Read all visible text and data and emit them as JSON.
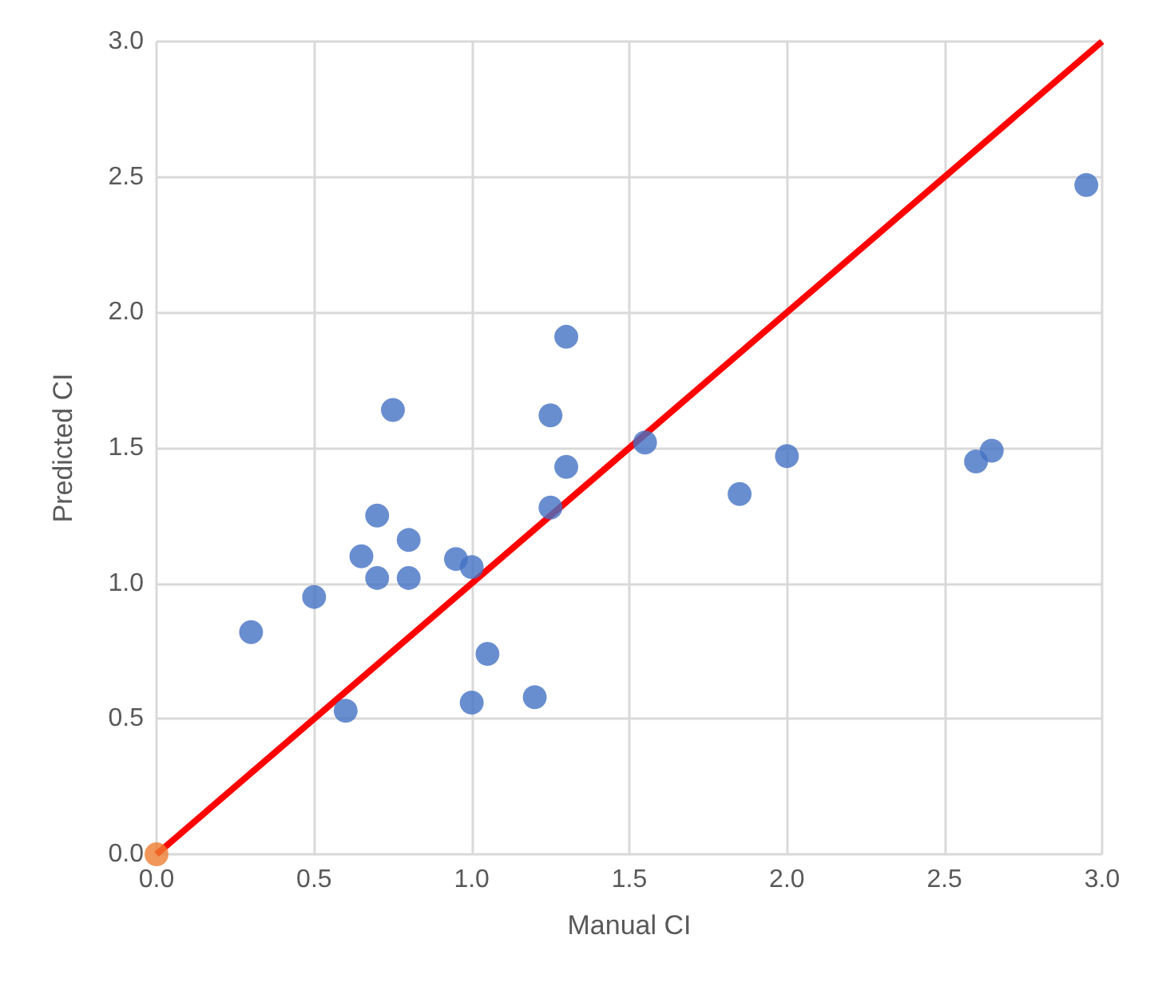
{
  "chart_data": {
    "type": "scatter",
    "xlabel": "Manual CI",
    "ylabel": "Predicted CI",
    "xlim": [
      0,
      3
    ],
    "ylim": [
      0,
      3
    ],
    "xticks": [
      {
        "value": 0,
        "label": "0.0"
      },
      {
        "value": 0.5,
        "label": "0.5"
      },
      {
        "value": 1,
        "label": "1.0"
      },
      {
        "value": 1.5,
        "label": "1.5"
      },
      {
        "value": 2,
        "label": "2.0"
      },
      {
        "value": 2.5,
        "label": "2.5"
      },
      {
        "value": 3,
        "label": "3.0"
      }
    ],
    "yticks": [
      {
        "value": 0,
        "label": "0.0"
      },
      {
        "value": 0.5,
        "label": "0.5"
      },
      {
        "value": 1,
        "label": "1.0"
      },
      {
        "value": 1.5,
        "label": "1.5"
      },
      {
        "value": 2,
        "label": "2.0"
      },
      {
        "value": 2.5,
        "label": "2.5"
      },
      {
        "value": 3,
        "label": "3.0"
      }
    ],
    "grid": true,
    "marker": "circle",
    "series": [
      {
        "type": "line",
        "marker": "none",
        "color": "#ff0000",
        "x": [
          0,
          3
        ],
        "values": [
          0,
          3
        ]
      },
      {
        "color": "#4472c4",
        "x": [
          1.3,
          0.75,
          1.25,
          1.55,
          1.3,
          0.7,
          1.25,
          0.8,
          0.65,
          0.95,
          1.0,
          0.7,
          0.8,
          0.5,
          0.3,
          1.05,
          1.2,
          1.0,
          0.6,
          2.95,
          1.85,
          2.0,
          2.6,
          2.65
        ],
        "values": [
          1.91,
          1.64,
          1.62,
          1.52,
          1.43,
          1.25,
          1.28,
          1.16,
          1.1,
          1.09,
          1.06,
          1.02,
          1.02,
          0.95,
          0.82,
          0.74,
          0.58,
          0.56,
          0.53,
          2.47,
          1.33,
          1.47,
          1.45,
          1.49
        ]
      },
      {
        "color": "#ed7d31",
        "x": [
          0
        ],
        "values": [
          0
        ]
      }
    ]
  }
}
